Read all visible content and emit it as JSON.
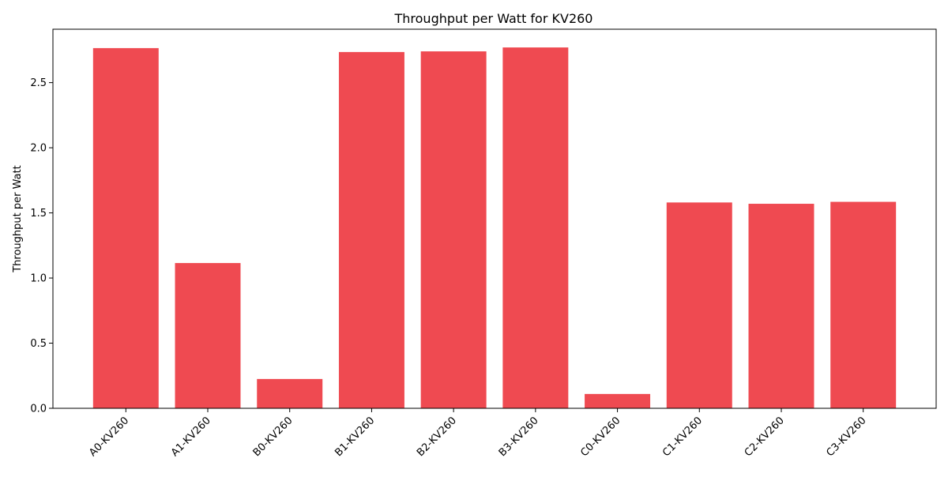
{
  "chart_data": {
    "type": "bar",
    "title": "Throughput per Watt for KV260",
    "xlabel": "",
    "ylabel": "Throughput per Watt",
    "categories": [
      "A0-KV260",
      "A1-KV260",
      "B0-KV260",
      "B1-KV260",
      "B2-KV260",
      "B3-KV260",
      "C0-KV260",
      "C1-KV260",
      "C2-KV260",
      "C3-KV260"
    ],
    "values": [
      2.765,
      1.115,
      0.225,
      2.735,
      2.74,
      2.77,
      0.11,
      1.58,
      1.57,
      1.585
    ],
    "ylim": [
      0,
      2.91
    ],
    "yticks": [
      0.0,
      0.5,
      1.0,
      1.5,
      2.0,
      2.5
    ],
    "ytick_labels": [
      "0.0",
      "0.5",
      "1.0",
      "1.5",
      "2.0",
      "2.5"
    ],
    "bar_color": "#ef4a51",
    "grid": false,
    "legend": "none"
  }
}
